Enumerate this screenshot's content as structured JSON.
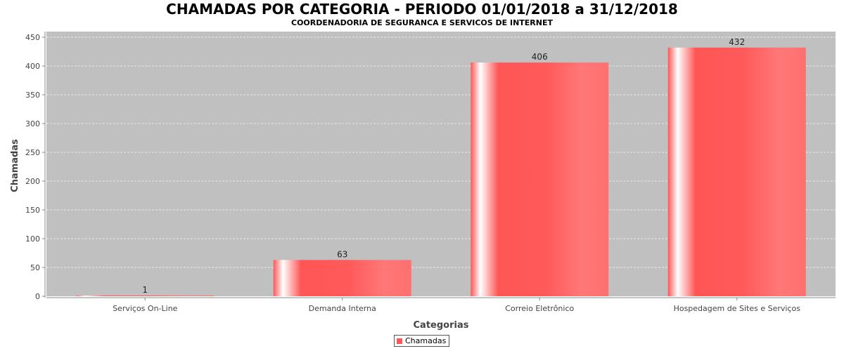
{
  "chart_data": {
    "type": "bar",
    "title": "CHAMADAS POR CATEGORIA - PERIODO 01/01/2018 a 31/12/2018",
    "subtitle": "COORDENADORIA DE SEGURANCA E SERVICOS DE INTERNET",
    "xlabel": "Categorias",
    "ylabel": "Chamadas",
    "categories": [
      "Serviços On-Line",
      "Demanda Interna",
      "Correio Eletrônico",
      "Hospedagem de Sites e Serviços"
    ],
    "series": [
      {
        "name": "Chamadas",
        "values": [
          1,
          63,
          406,
          432
        ]
      }
    ],
    "ylim": [
      0,
      450
    ],
    "yticks": [
      0,
      50,
      100,
      150,
      200,
      250,
      300,
      350,
      400,
      450
    ],
    "grid": true,
    "legend_position": "bottom-center",
    "colors": {
      "bar": "#ff5555",
      "plot_background": "#c0c0c0",
      "gridline": "#e8e8e8"
    }
  }
}
